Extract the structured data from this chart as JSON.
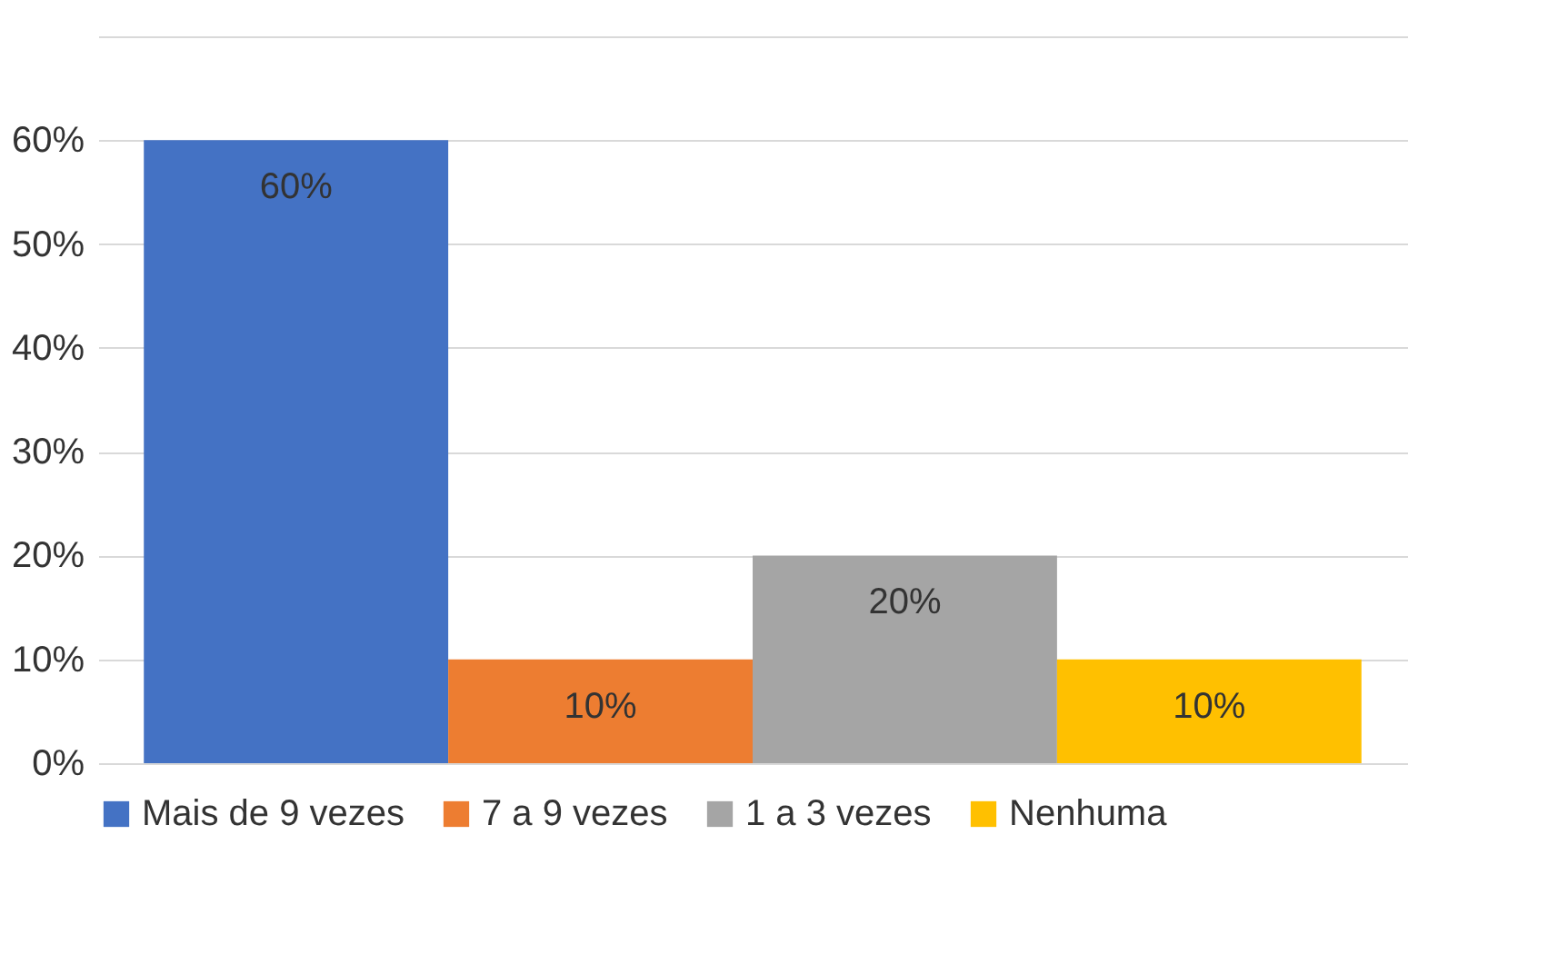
{
  "chart_data": {
    "type": "bar",
    "categories": [
      null,
      null,
      null,
      null
    ],
    "series": [
      {
        "name": "Mais de 9 vezes",
        "color": "#4472c4",
        "values": [
          60,
          null,
          null,
          null
        ],
        "value_labels": [
          "60%",
          null,
          null,
          null
        ]
      },
      {
        "name": "7 a 9 vezes",
        "color": "#ed7d31",
        "values": [
          null,
          10,
          null,
          null
        ],
        "value_labels": [
          null,
          "10%",
          null,
          null
        ]
      },
      {
        "name": "1 a 3 vezes",
        "color": "#a5a5a5",
        "values": [
          null,
          null,
          20,
          null
        ],
        "value_labels": [
          null,
          null,
          "20%",
          null
        ]
      },
      {
        "name": "Nenhuma",
        "color": "#ffc000",
        "values": [
          null,
          null,
          null,
          10
        ],
        "value_labels": [
          null,
          null,
          null,
          "10%"
        ]
      }
    ],
    "ylim": [
      0,
      70
    ],
    "yticks": [
      {
        "value": 0,
        "label": "0%"
      },
      {
        "value": 10,
        "label": "10%"
      },
      {
        "value": 20,
        "label": "20%"
      },
      {
        "value": 30,
        "label": "30%"
      },
      {
        "value": 40,
        "label": "40%"
      },
      {
        "value": 50,
        "label": "50%"
      },
      {
        "value": 60,
        "label": "60%"
      },
      {
        "value": 70,
        "label": null
      }
    ],
    "grid": "y",
    "legend": "bottom"
  }
}
